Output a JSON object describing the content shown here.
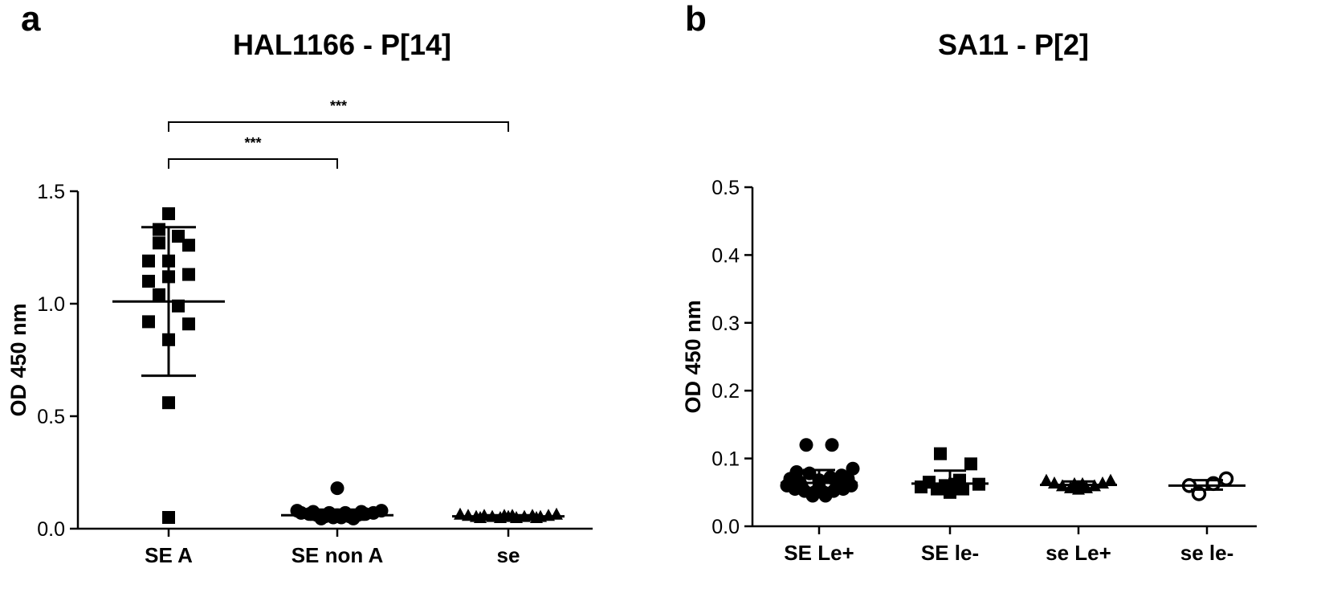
{
  "colors": {
    "ink": "#000000",
    "background": "#ffffff"
  },
  "chart_data": [
    {
      "type": "scatter",
      "panel": "a",
      "title": "HAL1166  - P[14]",
      "ylabel": "OD 450 nm",
      "ylim": [
        0,
        1.5
      ],
      "yticks": [
        "0.0",
        "0.5",
        "1.0",
        "1.5"
      ],
      "categories": [
        "SE A",
        "SE non A",
        "se"
      ],
      "series": [
        {
          "category": "SE A",
          "marker": "square",
          "mean": 1.01,
          "sd_low": 0.68,
          "sd_high": 1.34,
          "points": [
            {
              "dx": 0,
              "y": 1.4
            },
            {
              "dx": -12,
              "y": 1.33
            },
            {
              "dx": 12,
              "y": 1.3
            },
            {
              "dx": -12,
              "y": 1.27
            },
            {
              "dx": 25,
              "y": 1.26
            },
            {
              "dx": -25,
              "y": 1.19
            },
            {
              "dx": 0,
              "y": 1.19
            },
            {
              "dx": 25,
              "y": 1.13
            },
            {
              "dx": -25,
              "y": 1.1
            },
            {
              "dx": 0,
              "y": 1.12
            },
            {
              "dx": -12,
              "y": 1.04
            },
            {
              "dx": 12,
              "y": 0.99
            },
            {
              "dx": -25,
              "y": 0.92
            },
            {
              "dx": 25,
              "y": 0.91
            },
            {
              "dx": 0,
              "y": 0.84
            },
            {
              "dx": 0,
              "y": 0.56
            },
            {
              "dx": 0,
              "y": 0.05
            }
          ]
        },
        {
          "category": "SE non A",
          "marker": "circle",
          "mean": 0.06,
          "sd_low": 0.04,
          "sd_high": 0.085,
          "points": [
            {
              "dx": 0,
              "y": 0.18
            },
            {
              "dx": -50,
              "y": 0.08
            },
            {
              "dx": 55,
              "y": 0.08
            },
            {
              "dx": -45,
              "y": 0.07
            },
            {
              "dx": -35,
              "y": 0.065
            },
            {
              "dx": -25,
              "y": 0.06
            },
            {
              "dx": -15,
              "y": 0.055
            },
            {
              "dx": -5,
              "y": 0.05
            },
            {
              "dx": 5,
              "y": 0.05
            },
            {
              "dx": 15,
              "y": 0.055
            },
            {
              "dx": 25,
              "y": 0.06
            },
            {
              "dx": 35,
              "y": 0.065
            },
            {
              "dx": 45,
              "y": 0.07
            },
            {
              "dx": -30,
              "y": 0.075
            },
            {
              "dx": 30,
              "y": 0.075
            },
            {
              "dx": -10,
              "y": 0.07
            },
            {
              "dx": 10,
              "y": 0.07
            },
            {
              "dx": 0,
              "y": 0.06
            },
            {
              "dx": -20,
              "y": 0.045
            },
            {
              "dx": 20,
              "y": 0.045
            }
          ]
        },
        {
          "category": "se",
          "marker": "triangle",
          "mean": 0.055,
          "sd_low": 0.05,
          "sd_high": 0.06,
          "points": [
            {
              "dx": -60,
              "y": 0.065
            },
            {
              "dx": -50,
              "y": 0.06
            },
            {
              "dx": -40,
              "y": 0.055
            },
            {
              "dx": -30,
              "y": 0.06
            },
            {
              "dx": -20,
              "y": 0.055
            },
            {
              "dx": -10,
              "y": 0.05
            },
            {
              "dx": 0,
              "y": 0.055
            },
            {
              "dx": 10,
              "y": 0.05
            },
            {
              "dx": 20,
              "y": 0.055
            },
            {
              "dx": 30,
              "y": 0.06
            },
            {
              "dx": 40,
              "y": 0.055
            },
            {
              "dx": 50,
              "y": 0.06
            },
            {
              "dx": 60,
              "y": 0.065
            },
            {
              "dx": -35,
              "y": 0.05
            },
            {
              "dx": 35,
              "y": 0.05
            },
            {
              "dx": -5,
              "y": 0.06
            },
            {
              "dx": 5,
              "y": 0.06
            }
          ]
        }
      ],
      "significance": [
        {
          "from": "SE A",
          "to": "SE non A",
          "label": "***",
          "level": 1
        },
        {
          "from": "SE A",
          "to": "se",
          "label": "***",
          "level": 2
        }
      ]
    },
    {
      "type": "scatter",
      "panel": "b",
      "title": "SA11  - P[2]",
      "ylabel": "OD 450 nm",
      "ylim": [
        0,
        0.5
      ],
      "yticks": [
        "0.0",
        "0.1",
        "0.2",
        "0.3",
        "0.4",
        "0.5"
      ],
      "categories": [
        "SE Le+",
        "SE le-",
        "se Le+",
        "se le-"
      ],
      "series": [
        {
          "category": "SE Le+",
          "marker": "circle",
          "mean": 0.064,
          "sd_low": 0.048,
          "sd_high": 0.083,
          "points": [
            {
              "dx": -16,
              "y": 0.12
            },
            {
              "dx": 16,
              "y": 0.12
            },
            {
              "dx": -28,
              "y": 0.08
            },
            {
              "dx": -12,
              "y": 0.078
            },
            {
              "dx": 28,
              "y": 0.075
            },
            {
              "dx": 42,
              "y": 0.085
            },
            {
              "dx": -36,
              "y": 0.07
            },
            {
              "dx": 36,
              "y": 0.07
            },
            {
              "dx": -24,
              "y": 0.065
            },
            {
              "dx": 0,
              "y": 0.068
            },
            {
              "dx": 14,
              "y": 0.072
            },
            {
              "dx": -40,
              "y": 0.06
            },
            {
              "dx": 40,
              "y": 0.06
            },
            {
              "dx": -30,
              "y": 0.055
            },
            {
              "dx": -18,
              "y": 0.052
            },
            {
              "dx": -6,
              "y": 0.05
            },
            {
              "dx": 6,
              "y": 0.05
            },
            {
              "dx": 18,
              "y": 0.052
            },
            {
              "dx": 30,
              "y": 0.055
            },
            {
              "dx": -8,
              "y": 0.045
            },
            {
              "dx": 8,
              "y": 0.045
            },
            {
              "dx": 22,
              "y": 0.062
            },
            {
              "dx": -22,
              "y": 0.06
            },
            {
              "dx": 0,
              "y": 0.058
            }
          ]
        },
        {
          "category": "SE le-",
          "marker": "square",
          "mean": 0.063,
          "sd_low": 0.05,
          "sd_high": 0.082,
          "points": [
            {
              "dx": -12,
              "y": 0.107
            },
            {
              "dx": 26,
              "y": 0.092
            },
            {
              "dx": -26,
              "y": 0.065
            },
            {
              "dx": 12,
              "y": 0.068
            },
            {
              "dx": -36,
              "y": 0.058
            },
            {
              "dx": 36,
              "y": 0.062
            },
            {
              "dx": -16,
              "y": 0.055
            },
            {
              "dx": 0,
              "y": 0.05
            },
            {
              "dx": 16,
              "y": 0.055
            },
            {
              "dx": -6,
              "y": 0.06
            },
            {
              "dx": 6,
              "y": 0.062
            }
          ]
        },
        {
          "category": "se Le+",
          "marker": "triangle",
          "mean": 0.061,
          "sd_low": 0.056,
          "sd_high": 0.066,
          "points": [
            {
              "dx": -40,
              "y": 0.068
            },
            {
              "dx": -30,
              "y": 0.064
            },
            {
              "dx": -20,
              "y": 0.06
            },
            {
              "dx": -10,
              "y": 0.057
            },
            {
              "dx": 0,
              "y": 0.055
            },
            {
              "dx": 10,
              "y": 0.057
            },
            {
              "dx": 20,
              "y": 0.06
            },
            {
              "dx": 30,
              "y": 0.064
            },
            {
              "dx": 40,
              "y": 0.068
            },
            {
              "dx": -5,
              "y": 0.063
            },
            {
              "dx": 5,
              "y": 0.063
            }
          ]
        },
        {
          "category": "se le-",
          "marker": "open-circle",
          "mean": 0.06,
          "sd_low": 0.054,
          "sd_high": 0.068,
          "points": [
            {
              "dx": -22,
              "y": 0.06
            },
            {
              "dx": -10,
              "y": 0.048
            },
            {
              "dx": 8,
              "y": 0.063
            },
            {
              "dx": 24,
              "y": 0.07
            }
          ]
        }
      ]
    }
  ]
}
